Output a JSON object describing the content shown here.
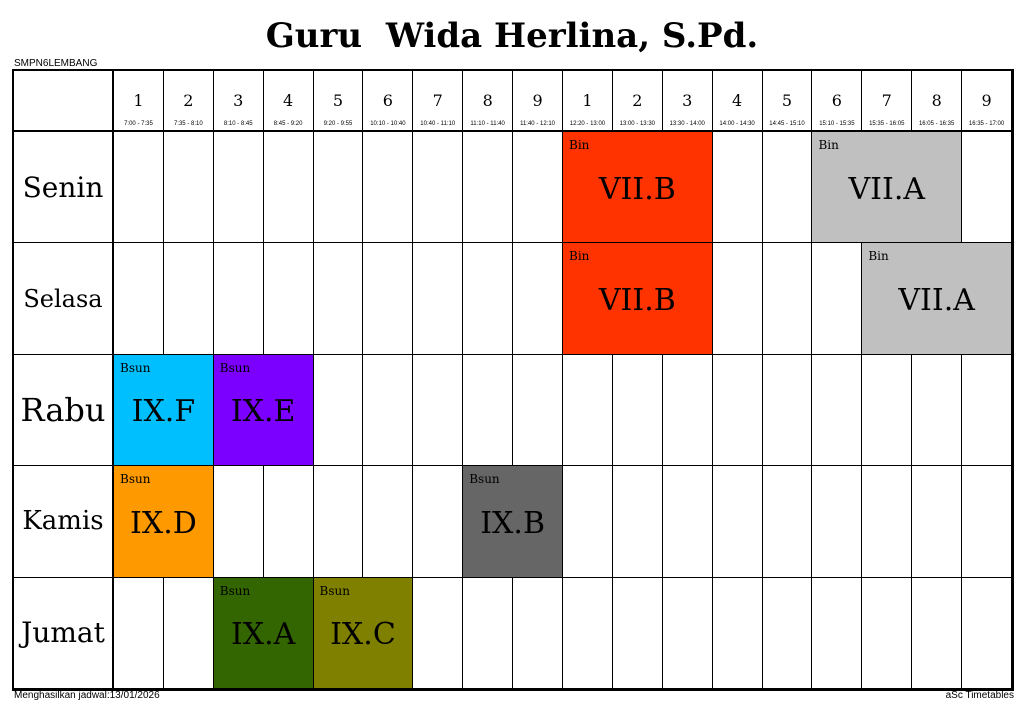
{
  "title": "Guru  Wida Herlina, S.Pd.",
  "school": "SMPN6LEMBANG",
  "footer": {
    "generated": "Menghasilkan jadwal:13/01/2026",
    "brand": "aSc Timetables"
  },
  "periods": [
    {
      "num": "1",
      "time": "7:00 - 7:35"
    },
    {
      "num": "2",
      "time": "7:35 - 8:10"
    },
    {
      "num": "3",
      "time": "8:10 - 8:45"
    },
    {
      "num": "4",
      "time": "8:45 - 9:20"
    },
    {
      "num": "5",
      "time": "9:20 - 9:55"
    },
    {
      "num": "6",
      "time": "10:10 - 10:40"
    },
    {
      "num": "7",
      "time": "10:40 - 11:10"
    },
    {
      "num": "8",
      "time": "11:10 - 11:40"
    },
    {
      "num": "9",
      "time": "11:40 - 12:10"
    },
    {
      "num": "1",
      "time": "12:20 - 13:00"
    },
    {
      "num": "2",
      "time": "13:00 - 13:30"
    },
    {
      "num": "3",
      "time": "13:30 - 14:00"
    },
    {
      "num": "4",
      "time": "14:00 - 14:30"
    },
    {
      "num": "5",
      "time": "14:45 - 15:10"
    },
    {
      "num": "6",
      "time": "15:10 - 15:35"
    },
    {
      "num": "7",
      "time": "15:35 - 16:05"
    },
    {
      "num": "8",
      "time": "16:05 - 16:35"
    },
    {
      "num": "9",
      "time": "16:35 - 17:00"
    }
  ],
  "days": [
    {
      "name": "Senin",
      "lessons": [
        {
          "start": 9,
          "span": 3,
          "subject": "Bin",
          "class": "VII.B",
          "color": "#ff3300"
        },
        {
          "start": 14,
          "span": 3,
          "subject": "Bin",
          "class": "VII.A",
          "color": "#c0c0c0"
        }
      ]
    },
    {
      "name": "Selasa",
      "lessons": [
        {
          "start": 9,
          "span": 3,
          "subject": "Bin",
          "class": "VII.B",
          "color": "#ff3300"
        },
        {
          "start": 15,
          "span": 3,
          "subject": "Bin",
          "class": "VII.A",
          "color": "#c0c0c0"
        }
      ]
    },
    {
      "name": "Rabu",
      "lessons": [
        {
          "start": 0,
          "span": 2,
          "subject": "Bsun",
          "class": "IX.F",
          "color": "#00bfff"
        },
        {
          "start": 2,
          "span": 2,
          "subject": "Bsun",
          "class": "IX.E",
          "color": "#7b00ff"
        }
      ]
    },
    {
      "name": "Kamis",
      "lessons": [
        {
          "start": 0,
          "span": 2,
          "subject": "Bsun",
          "class": "IX.D",
          "color": "#ff9900"
        },
        {
          "start": 7,
          "span": 2,
          "subject": "Bsun",
          "class": "IX.B",
          "color": "#666666"
        }
      ]
    },
    {
      "name": "Jumat",
      "lessons": [
        {
          "start": 2,
          "span": 2,
          "subject": "Bsun",
          "class": "IX.A",
          "color": "#336600"
        },
        {
          "start": 4,
          "span": 2,
          "subject": "Bsun",
          "class": "IX.C",
          "color": "#808000"
        }
      ]
    }
  ]
}
